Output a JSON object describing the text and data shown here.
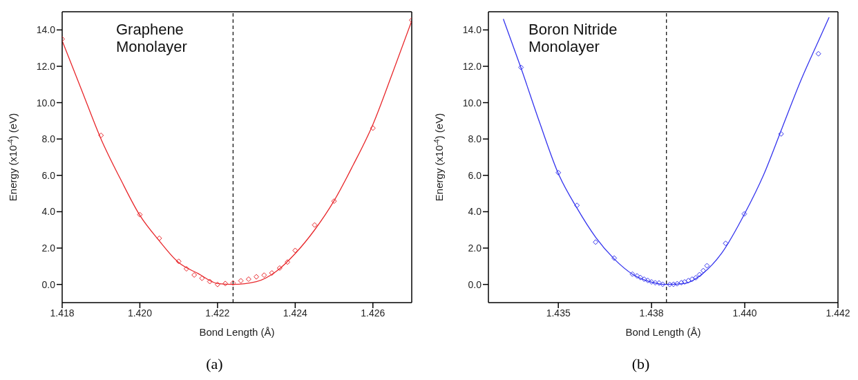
{
  "chart_data": [
    {
      "type": "scatter",
      "xlabel": "Bond Length (Å)",
      "ylabel": "Energy (x10$^{-4}$) (eV)",
      "annotations": [
        "Graphene Monolayer",
        "(a)"
      ],
      "marker": "diamond",
      "xlim": [
        1.418,
        1.427
      ],
      "ylim": [
        -1,
        15
      ],
      "xticks": [
        {
          "value": 1.418,
          "label": "1.418"
        },
        {
          "value": 1.42,
          "label": "1.420"
        },
        {
          "value": 1.422,
          "label": "1.422"
        },
        {
          "value": 1.424,
          "label": "1.424"
        },
        {
          "value": 1.426,
          "label": "1.426"
        }
      ],
      "yticks": [
        {
          "value": 0,
          "label": "0.0"
        },
        {
          "value": 2,
          "label": "2.0"
        },
        {
          "value": 4,
          "label": "4.0"
        },
        {
          "value": 6,
          "label": "6.0"
        },
        {
          "value": 8,
          "label": "8.0"
        },
        {
          "value": 10,
          "label": "10.0"
        },
        {
          "value": 12,
          "label": "12.0"
        },
        {
          "value": 14,
          "label": "14.0"
        }
      ],
      "ref_lines": [
        {
          "axis": "x",
          "value": 1.4224,
          "color": "#000000",
          "line_style": "dashed"
        }
      ],
      "series": [
        {
          "color": "#e8262a",
          "x": [
            1.418,
            1.419,
            1.42,
            1.4205,
            1.421,
            1.4212,
            1.4214,
            1.4216,
            1.4218,
            1.422,
            1.4222,
            1.4224,
            1.4226,
            1.4228,
            1.423,
            1.4232,
            1.4234,
            1.4236,
            1.4238,
            1.424,
            1.4245,
            1.425,
            1.426,
            1.427
          ],
          "values": [
            13.5,
            8.2,
            3.84,
            2.54,
            1.27,
            0.86,
            0.52,
            0.34,
            0.16,
            0.0,
            0.05,
            0.08,
            0.2,
            0.29,
            0.42,
            0.51,
            0.63,
            0.9,
            1.23,
            1.87,
            3.27,
            4.58,
            8.6,
            14.54
          ]
        },
        {
          "type": "line",
          "color": "#e8262a",
          "marker": "none",
          "x": [
            1.418,
            1.4185,
            1.419,
            1.4195,
            1.42,
            1.4205,
            1.421,
            1.4215,
            1.422,
            1.4224,
            1.423,
            1.4235,
            1.424,
            1.4245,
            1.425,
            1.4255,
            1.426,
            1.4265,
            1.427
          ],
          "values": [
            13.4,
            10.7,
            8.0,
            5.8,
            3.8,
            2.4,
            1.2,
            0.6,
            0.05,
            0.0,
            0.15,
            0.7,
            1.7,
            3.0,
            4.6,
            6.6,
            8.8,
            11.6,
            14.5
          ]
        }
      ]
    },
    {
      "type": "scatter",
      "xlabel": "Bond Length (Å)",
      "ylabel": "Energy (x10$^{-4}$) (eV)",
      "annotations": [
        "Boron Nitride Monolayer",
        "(b)"
      ],
      "marker": "diamond",
      "xlim": [
        1.434,
        1.4415
      ],
      "ylim": [
        -1,
        15
      ],
      "xticks": [
        {
          "value": 1.4355,
          "label": "1.435"
        },
        {
          "value": 1.4375,
          "label": "1.438"
        },
        {
          "value": 1.4395,
          "label": "1.440"
        },
        {
          "value": 1.4415,
          "label": "1.442"
        }
      ],
      "yticks": [
        {
          "value": 0,
          "label": "0.0"
        },
        {
          "value": 2,
          "label": "2.0"
        },
        {
          "value": 4,
          "label": "4.0"
        },
        {
          "value": 6,
          "label": "6.0"
        },
        {
          "value": 8,
          "label": "8.0"
        },
        {
          "value": 10,
          "label": "10.0"
        },
        {
          "value": 12,
          "label": "12.0"
        },
        {
          "value": 14,
          "label": "14.0"
        }
      ],
      "ref_lines": [
        {
          "axis": "x",
          "value": 1.43782,
          "color": "#000000",
          "line_style": "dashed"
        }
      ],
      "series": [
        {
          "color": "#3333ee",
          "x": [
            1.4347,
            1.4355,
            1.4359,
            1.4363,
            1.4367,
            1.43709,
            1.43719,
            1.43726,
            1.43734,
            1.43742,
            1.4375,
            1.43758,
            1.43766,
            1.43774,
            1.43789,
            1.43797,
            1.43805,
            1.43814,
            1.43821,
            1.43829,
            1.43837,
            1.43845,
            1.43853,
            1.43861,
            1.43869,
            1.43909,
            1.43949,
            1.44028,
            1.44108
          ],
          "values": [
            11.94,
            6.15,
            4.35,
            2.33,
            1.45,
            0.57,
            0.47,
            0.38,
            0.29,
            0.22,
            0.14,
            0.09,
            0.08,
            0.01,
            0.0,
            0.01,
            0.04,
            0.1,
            0.14,
            0.21,
            0.29,
            0.37,
            0.54,
            0.76,
            1.03,
            2.26,
            3.88,
            8.28,
            12.69
          ]
        },
        {
          "type": "line",
          "color": "#3333ee",
          "marker": "none",
          "x": [
            1.43432,
            1.4347,
            1.4351,
            1.4355,
            1.4359,
            1.4363,
            1.4367,
            1.4371,
            1.4375,
            1.43782,
            1.4382,
            1.4386,
            1.439,
            1.4395,
            1.4399,
            1.4403,
            1.4407,
            1.4411,
            1.44131
          ],
          "values": [
            14.6,
            11.9,
            8.9,
            6.1,
            4.2,
            2.6,
            1.4,
            0.55,
            0.13,
            0.0,
            0.05,
            0.6,
            1.7,
            3.9,
            6.0,
            8.6,
            11.2,
            13.5,
            14.7
          ]
        }
      ]
    }
  ]
}
